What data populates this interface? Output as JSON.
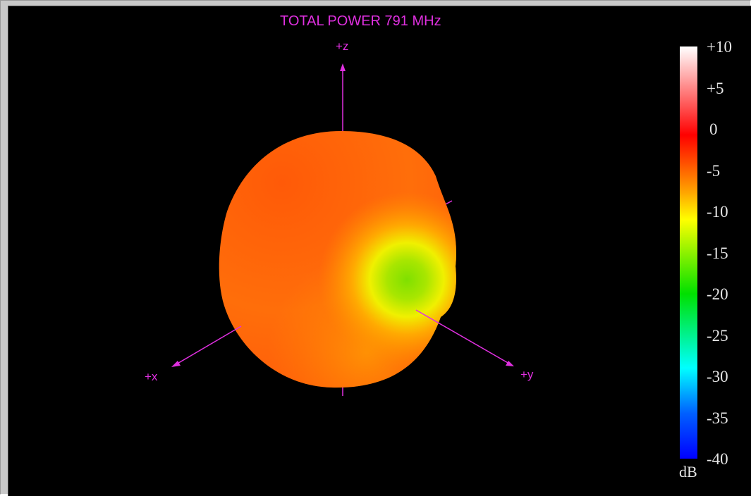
{
  "plot": {
    "title": "TOTAL POWER 791 MHz",
    "axis_color": "#e030e0",
    "axes": {
      "z": "+z",
      "x": "+x",
      "y": "+y"
    }
  },
  "colorbar": {
    "unit": "dB",
    "ticks": [
      "+10",
      "+5",
      "0",
      "-5",
      "-10",
      "-15",
      "-20",
      "-25",
      "-30",
      "-35",
      "-40"
    ],
    "range": [
      -40,
      10
    ],
    "colors": [
      "#ffffff",
      "#ff0000",
      "#ffa000",
      "#ffff00",
      "#00e000",
      "#00ffff",
      "#0000ff"
    ]
  }
}
